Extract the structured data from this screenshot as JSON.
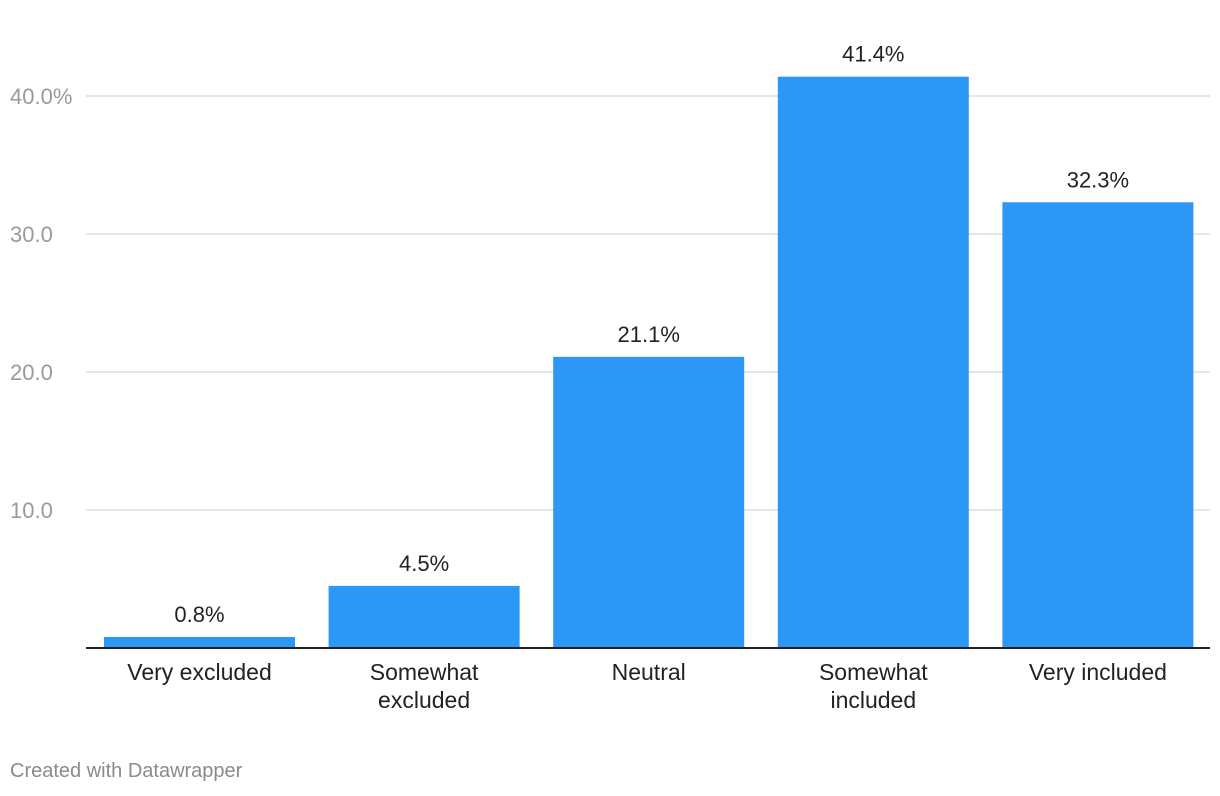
{
  "chart_data": {
    "type": "bar",
    "categories": [
      "Very excluded",
      "Somewhat excluded",
      "Neutral",
      "Somewhat included",
      "Very included"
    ],
    "category_lines": [
      [
        "Very excluded"
      ],
      [
        "Somewhat",
        "excluded"
      ],
      [
        "Neutral"
      ],
      [
        "Somewhat",
        "included"
      ],
      [
        "Very included"
      ]
    ],
    "values": [
      0.8,
      4.5,
      21.1,
      41.4,
      32.3
    ],
    "value_labels": [
      "0.8%",
      "4.5%",
      "21.1%",
      "41.4%",
      "32.3%"
    ],
    "y_ticks": [
      10,
      20,
      30,
      40
    ],
    "y_tick_labels": [
      "10.0",
      "20.0",
      "30.0",
      "40.0%"
    ],
    "ylim": [
      0,
      40
    ],
    "grid": true,
    "bar_color": "#2c97f5",
    "title": "",
    "xlabel": "",
    "ylabel": ""
  },
  "credit": "Created with Datawrapper"
}
